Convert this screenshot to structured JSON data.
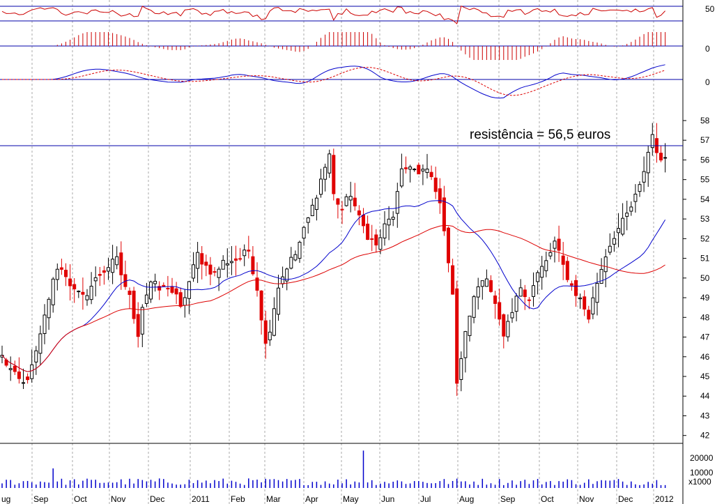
{
  "chart_data": {
    "type": "candlestick",
    "annotation": "resistência = 56,5 euros",
    "resistance_level": 56.5,
    "price_axis": {
      "ylim": [
        41.6,
        58.6
      ],
      "ticks": [
        42,
        43,
        44,
        45,
        46,
        47,
        48,
        49,
        50,
        51,
        52,
        53,
        54,
        55,
        56,
        57,
        58
      ]
    },
    "x_tick_labels": [
      "Aug",
      "Sep",
      "Oct",
      "Nov",
      "Dec",
      "2011",
      "Feb",
      "Mar",
      "Apr",
      "May",
      "Jun",
      "Jul",
      "Aug",
      "Sep",
      "Oct",
      "Nov",
      "Dec",
      "2012"
    ],
    "x_tick_labels_display": [
      "ug",
      "Sep",
      "Oct",
      "Nov",
      "Dec",
      "2011",
      "Feb",
      "Mar",
      "Apr",
      "May",
      "Jun",
      "Jul",
      "Aug",
      "Sep",
      "Oct",
      "Nov",
      "Dec",
      "2012"
    ],
    "close_anchors": [
      [
        0,
        46.0
      ],
      [
        3,
        45.0
      ],
      [
        5,
        44.6
      ],
      [
        7,
        45.4
      ],
      [
        9,
        47.0
      ],
      [
        11,
        49.0
      ],
      [
        13,
        50.6
      ],
      [
        15,
        50.2
      ],
      [
        17,
        49.3
      ],
      [
        19,
        49.0
      ],
      [
        21,
        49.6
      ],
      [
        23,
        50.2
      ],
      [
        25,
        50.6
      ],
      [
        27,
        50.9
      ],
      [
        28,
        50.2
      ],
      [
        30,
        49.0
      ],
      [
        32,
        47.2
      ],
      [
        33,
        48.6
      ],
      [
        35,
        49.8
      ],
      [
        37,
        49.4
      ],
      [
        39,
        49.6
      ],
      [
        41,
        49.0
      ],
      [
        42,
        48.4
      ],
      [
        44,
        49.8
      ],
      [
        46,
        51.2
      ],
      [
        48,
        50.6
      ],
      [
        50,
        50.2
      ],
      [
        52,
        50.8
      ],
      [
        54,
        50.9
      ],
      [
        56,
        51.0
      ],
      [
        58,
        51.4
      ],
      [
        60,
        49.5
      ],
      [
        62,
        46.6
      ],
      [
        63,
        47.5
      ],
      [
        65,
        49.6
      ],
      [
        67,
        50.6
      ],
      [
        69,
        51.2
      ],
      [
        71,
        52.4
      ],
      [
        73,
        53.6
      ],
      [
        75,
        55.0
      ],
      [
        77,
        56.3
      ],
      [
        78,
        54.2
      ],
      [
        80,
        53.5
      ],
      [
        82,
        54.3
      ],
      [
        84,
        53.0
      ],
      [
        86,
        52.2
      ],
      [
        88,
        51.6
      ],
      [
        90,
        52.6
      ],
      [
        92,
        53.2
      ],
      [
        94,
        55.3
      ],
      [
        96,
        55.8
      ],
      [
        98,
        55.2
      ],
      [
        100,
        55.5
      ],
      [
        102,
        54.6
      ],
      [
        104,
        52.6
      ],
      [
        106,
        49.2
      ],
      [
        107,
        44.5
      ],
      [
        108,
        46.0
      ],
      [
        110,
        48.2
      ],
      [
        112,
        49.6
      ],
      [
        114,
        50.2
      ],
      [
        116,
        48.6
      ],
      [
        118,
        46.9
      ],
      [
        120,
        48.2
      ],
      [
        122,
        49.6
      ],
      [
        124,
        49.0
      ],
      [
        126,
        50.2
      ],
      [
        128,
        50.8
      ],
      [
        130,
        51.8
      ],
      [
        132,
        50.6
      ],
      [
        134,
        49.6
      ],
      [
        136,
        48.9
      ],
      [
        138,
        48.0
      ],
      [
        140,
        49.8
      ],
      [
        142,
        51.2
      ],
      [
        144,
        52.2
      ],
      [
        146,
        52.8
      ],
      [
        148,
        53.6
      ],
      [
        150,
        54.6
      ],
      [
        152,
        56.4
      ],
      [
        153,
        57.3
      ],
      [
        155,
        55.8
      ],
      [
        156,
        56.2
      ]
    ],
    "moving_average_periods": [
      20,
      50
    ],
    "indicator_axis_labels": [
      "50",
      "0",
      "0"
    ],
    "volume_axis": {
      "ticks": [
        10000,
        20000
      ],
      "unit_label": "x1000"
    },
    "colors": {
      "up_candle": "#000000",
      "down_candle": "#e00000",
      "ma_short": "#0000cc",
      "ma_long": "#dd0000",
      "volume": "#0000cc",
      "indicator_line": "#cc0000",
      "reference_line": "#0000aa",
      "grid": "#aaaaaa"
    }
  }
}
